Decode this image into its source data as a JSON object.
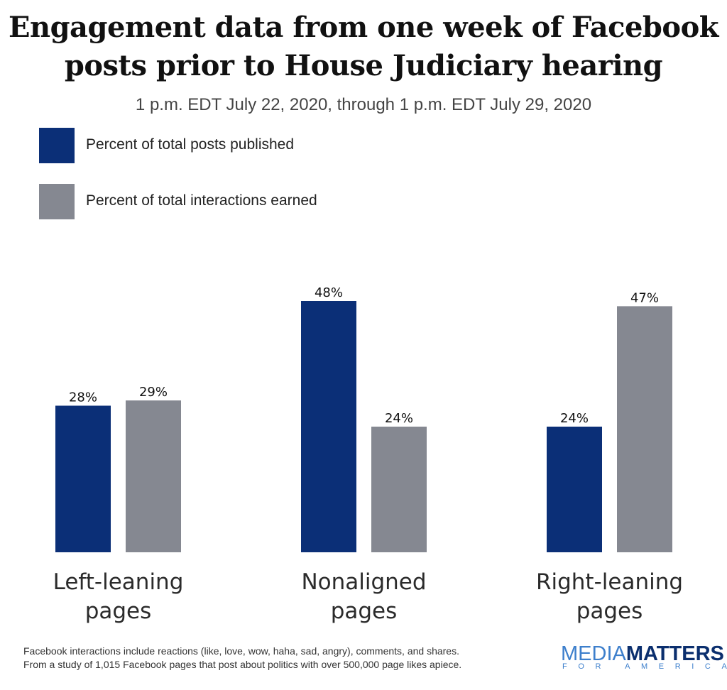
{
  "header": {
    "title_line1": "Engagement data from one week of Facebook",
    "title_line2": "posts prior to House Judiciary hearing",
    "subtitle": "1 p.m. EDT July 22, 2020, through 1 p.m. EDT July 29, 2020"
  },
  "legend": [
    {
      "label": "Percent of total posts published",
      "color": "#0b2f77"
    },
    {
      "label": "Percent of total interactions earned",
      "color": "#858891"
    }
  ],
  "chart_data": {
    "type": "bar",
    "title": "Engagement data from one week of Facebook posts prior to House Judiciary hearing",
    "subtitle": "1 p.m. EDT July 22, 2020, through 1 p.m. EDT July 29, 2020",
    "categories": [
      [
        "Left-leaning",
        "pages"
      ],
      [
        "Nonaligned",
        "pages"
      ],
      [
        "Right-leaning",
        "pages"
      ]
    ],
    "series": [
      {
        "name": "Percent of total posts published",
        "color": "#0b2f77",
        "values": [
          28,
          48,
          24
        ],
        "labels": [
          "28%",
          "48%",
          "24%"
        ]
      },
      {
        "name": "Percent of total interactions earned",
        "color": "#858891",
        "values": [
          29,
          24,
          47
        ],
        "labels": [
          "29%",
          "24%",
          "47%"
        ]
      }
    ],
    "ylim": [
      0,
      48
    ],
    "grid": false,
    "legend_position": "top-left"
  },
  "footnote": {
    "line1": "Facebook interactions include reactions (like, love, wow, haha, sad, angry), comments, and shares.",
    "line2": "From a study of 1,015 Facebook pages that post about politics with over 500,000 page likes apiece."
  },
  "logo": {
    "part1": "MEDIA",
    "part2": "MATTERS",
    "sub": "FOR AMERICA"
  }
}
